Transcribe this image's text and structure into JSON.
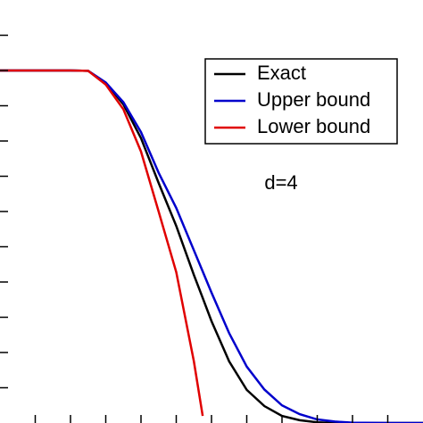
{
  "chart_data": {
    "type": "line",
    "annotation": "d=4",
    "x": [
      0,
      1,
      2,
      2.5,
      3,
      3.5,
      4,
      4.5,
      5,
      5.5,
      5.75,
      6,
      6.5,
      7,
      7.5,
      8,
      8.5,
      9,
      9.5,
      10,
      11,
      12
    ],
    "series": [
      {
        "name": "Exact",
        "color": "#000000",
        "values": [
          10,
          10,
          10,
          9.99,
          9.65,
          9.04,
          8.08,
          6.81,
          5.59,
          4.2,
          3.55,
          2.89,
          1.75,
          0.94,
          0.48,
          0.2,
          0.08,
          0.02,
          0,
          0,
          0,
          0
        ]
      },
      {
        "name": "Upper bound",
        "color": "#0000cc",
        "values": [
          10,
          10,
          10,
          9.99,
          9.66,
          9.1,
          8.25,
          7.1,
          6.1,
          4.9,
          4.3,
          3.7,
          2.55,
          1.6,
          0.95,
          0.5,
          0.25,
          0.1,
          0.04,
          0.01,
          0,
          0
        ]
      },
      {
        "name": "Lower bound",
        "color": "#e00000",
        "values": [
          10,
          10,
          10,
          9.99,
          9.6,
          8.9,
          7.7,
          6.0,
          4.28,
          1.75,
          0.2,
          null,
          null,
          null,
          null,
          null,
          null,
          null,
          null,
          null,
          null,
          null
        ]
      }
    ],
    "xlim": [
      0,
      12
    ],
    "ylim": [
      0,
      12
    ],
    "xticks": [
      1,
      2,
      3,
      4,
      5,
      6,
      7,
      8,
      9,
      10,
      11
    ],
    "yticks": [
      1,
      2,
      3,
      4,
      5,
      6,
      7,
      8,
      9,
      10,
      11
    ],
    "legend": "upper right"
  }
}
